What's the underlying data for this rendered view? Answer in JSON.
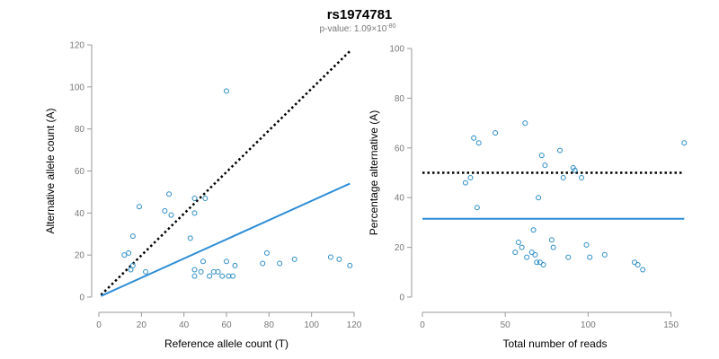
{
  "figure": {
    "title": "rs1974781",
    "subtitle_prefix": "p-value: 1.09×10",
    "subtitle_exponent": "-80"
  },
  "colors": {
    "points": "#2b8cc4",
    "fit_line": "#2b8cd6",
    "reference_line": "#000000",
    "axis": "#999999",
    "tick_text": "#777777"
  },
  "chart_data": [
    {
      "type": "scatter",
      "id": "left",
      "title": "",
      "xlabel": "Reference allele count (T)",
      "ylabel": "Alternative allele count (A)",
      "xlim": [
        0,
        120
      ],
      "ylim": [
        0,
        120
      ],
      "xticks": [
        0,
        20,
        40,
        60,
        80,
        100,
        120
      ],
      "yticks": [
        0,
        20,
        40,
        60,
        80,
        100,
        120
      ],
      "points": [
        [
          12,
          20
        ],
        [
          14,
          21
        ],
        [
          15,
          13
        ],
        [
          16,
          29
        ],
        [
          16,
          15
        ],
        [
          19,
          43
        ],
        [
          22,
          12
        ],
        [
          31,
          41
        ],
        [
          33,
          49
        ],
        [
          34,
          39
        ],
        [
          43,
          28
        ],
        [
          45,
          47
        ],
        [
          45,
          40
        ],
        [
          45,
          13
        ],
        [
          45,
          10
        ],
        [
          48,
          12
        ],
        [
          49,
          17
        ],
        [
          50,
          47
        ],
        [
          52,
          10
        ],
        [
          54,
          12
        ],
        [
          56,
          12
        ],
        [
          58,
          10
        ],
        [
          60,
          98
        ],
        [
          60,
          17
        ],
        [
          61,
          10
        ],
        [
          63,
          10
        ],
        [
          64,
          15
        ],
        [
          77,
          16
        ],
        [
          79,
          21
        ],
        [
          85,
          16
        ],
        [
          92,
          18
        ],
        [
          109,
          19
        ],
        [
          113,
          18
        ],
        [
          118,
          15
        ]
      ],
      "lines": [
        {
          "name": "reference",
          "style": "dotted",
          "x": [
            1,
            118
          ],
          "y": [
            1,
            117
          ]
        },
        {
          "name": "fit",
          "style": "solid",
          "x": [
            1,
            118
          ],
          "y": [
            0.5,
            54
          ]
        }
      ]
    },
    {
      "type": "scatter",
      "id": "right",
      "title": "",
      "xlabel": "Total number of reads",
      "ylabel": "Percentage alternative (A)",
      "xlim": [
        0,
        160
      ],
      "ylim": [
        0,
        100
      ],
      "xticks": [
        0,
        50,
        100,
        150
      ],
      "yticks": [
        0,
        20,
        40,
        60,
        80,
        100
      ],
      "points": [
        [
          26,
          46
        ],
        [
          29,
          48
        ],
        [
          31,
          64
        ],
        [
          33,
          36
        ],
        [
          34,
          62
        ],
        [
          44,
          66
        ],
        [
          56,
          18
        ],
        [
          58,
          22
        ],
        [
          60,
          20
        ],
        [
          62,
          70
        ],
        [
          63,
          16
        ],
        [
          66,
          18
        ],
        [
          67,
          27
        ],
        [
          68,
          17
        ],
        [
          69,
          14
        ],
        [
          70,
          40
        ],
        [
          71,
          14
        ],
        [
          72,
          57
        ],
        [
          73,
          13
        ],
        [
          74,
          53
        ],
        [
          78,
          23
        ],
        [
          79,
          20
        ],
        [
          83,
          59
        ],
        [
          85,
          48
        ],
        [
          88,
          16
        ],
        [
          91,
          52
        ],
        [
          92,
          51
        ],
        [
          96,
          48
        ],
        [
          99,
          21
        ],
        [
          101,
          16
        ],
        [
          110,
          17
        ],
        [
          128,
          14
        ],
        [
          130,
          13
        ],
        [
          133,
          11
        ],
        [
          158,
          62
        ]
      ],
      "lines": [
        {
          "name": "reference",
          "style": "dotted",
          "x": [
            0,
            158
          ],
          "y": [
            50,
            50
          ]
        },
        {
          "name": "fit",
          "style": "solid",
          "x": [
            0,
            158
          ],
          "y": [
            31.5,
            31.5
          ]
        }
      ]
    }
  ]
}
